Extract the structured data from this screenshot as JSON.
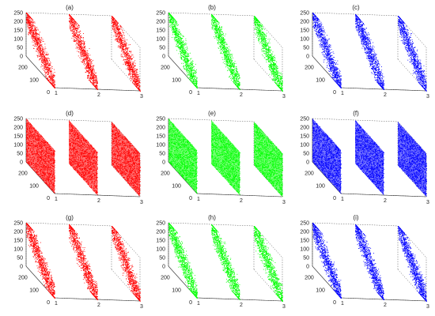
{
  "colors": {
    "red": "#ff0000",
    "green": "#00ff00",
    "blue": "#0000ff",
    "axis": "#555555"
  },
  "chart_data": [
    {
      "type": "scatter",
      "panel": "(a)",
      "color": "#ff0000",
      "pattern": "diagonal",
      "slices": [
        1,
        2,
        3
      ],
      "zlim": [
        0,
        250
      ],
      "ylim": [
        0,
        255
      ],
      "ztick_labels": [
        "250",
        "200",
        "150",
        "100",
        "50",
        "0"
      ],
      "ytick_labels": [
        "200",
        "100",
        "0"
      ],
      "xtick_labels": [
        "1",
        "2",
        "3"
      ]
    },
    {
      "type": "scatter",
      "panel": "(b)",
      "color": "#00ff00",
      "pattern": "diagonal",
      "slices": [
        1,
        2,
        3
      ],
      "zlim": [
        0,
        250
      ],
      "ylim": [
        0,
        255
      ],
      "ztick_labels": [
        "250",
        "200",
        "150",
        "100",
        "50",
        "0"
      ],
      "ytick_labels": [
        "200",
        "100",
        "0"
      ],
      "xtick_labels": [
        "1",
        "2",
        "3"
      ]
    },
    {
      "type": "scatter",
      "panel": "(c)",
      "color": "#0000ff",
      "pattern": "diagonal",
      "slices": [
        1,
        2,
        3
      ],
      "zlim": [
        0,
        250
      ],
      "ylim": [
        0,
        255
      ],
      "ztick_labels": [
        "250",
        "200",
        "150",
        "100",
        "50",
        "0"
      ],
      "ytick_labels": [
        "200",
        "100",
        "0"
      ],
      "xtick_labels": [
        "1",
        "2",
        "3"
      ]
    },
    {
      "type": "scatter",
      "panel": "(d)",
      "color": "#ff0000",
      "pattern": "uniform",
      "slices": [
        1,
        2,
        3
      ],
      "zlim": [
        0,
        250
      ],
      "ylim": [
        0,
        255
      ],
      "ztick_labels": [
        "250",
        "200",
        "150",
        "100",
        "50",
        "0"
      ],
      "ytick_labels": [
        "200",
        "100",
        "0"
      ],
      "xtick_labels": [
        "1",
        "2",
        "3"
      ]
    },
    {
      "type": "scatter",
      "panel": "(e)",
      "color": "#00ff00",
      "pattern": "uniform",
      "slices": [
        1,
        2,
        3
      ],
      "zlim": [
        0,
        250
      ],
      "ylim": [
        0,
        255
      ],
      "ztick_labels": [
        "250",
        "200",
        "150",
        "100",
        "50",
        "0"
      ],
      "ytick_labels": [
        "200",
        "100",
        "0"
      ],
      "xtick_labels": [
        "1",
        "2",
        "3"
      ]
    },
    {
      "type": "scatter",
      "panel": "(f)",
      "color": "#0000ff",
      "pattern": "uniform",
      "slices": [
        1,
        2,
        3
      ],
      "zlim": [
        0,
        250
      ],
      "ylim": [
        0,
        255
      ],
      "ztick_labels": [
        "250",
        "200",
        "150",
        "100",
        "50",
        "0"
      ],
      "ytick_labels": [
        "200",
        "100",
        "0"
      ],
      "xtick_labels": [
        "1",
        "2",
        "3"
      ]
    },
    {
      "type": "scatter",
      "panel": "(g)",
      "color": "#ff0000",
      "pattern": "diagonal",
      "slices": [
        1,
        2,
        3
      ],
      "zlim": [
        0,
        250
      ],
      "ylim": [
        0,
        255
      ],
      "ztick_labels": [
        "250",
        "200",
        "150",
        "100",
        "50",
        "0"
      ],
      "ytick_labels": [
        "200",
        "100",
        "0"
      ],
      "xtick_labels": [
        "1",
        "2",
        "3"
      ]
    },
    {
      "type": "scatter",
      "panel": "(h)",
      "color": "#00ff00",
      "pattern": "diagonal",
      "slices": [
        1,
        2,
        3
      ],
      "zlim": [
        0,
        250
      ],
      "ylim": [
        0,
        255
      ],
      "ztick_labels": [
        "250",
        "200",
        "150",
        "100",
        "50",
        "0"
      ],
      "ytick_labels": [
        "200",
        "100",
        "0"
      ],
      "xtick_labels": [
        "1",
        "2",
        "3"
      ]
    },
    {
      "type": "scatter",
      "panel": "(i)",
      "color": "#0000ff",
      "pattern": "diagonal",
      "slices": [
        1,
        2,
        3
      ],
      "zlim": [
        0,
        250
      ],
      "ylim": [
        0,
        255
      ],
      "ztick_labels": [
        "250",
        "200",
        "150",
        "100",
        "50",
        "0"
      ],
      "ytick_labels": [
        "200",
        "100",
        "0"
      ],
      "xtick_labels": [
        "1",
        "2",
        "3"
      ]
    }
  ]
}
